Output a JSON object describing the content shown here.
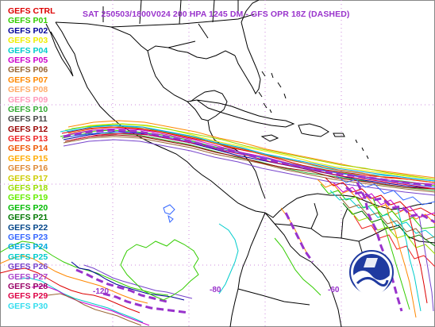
{
  "title": "SAT 250503/1800V024  200 HPA 1245 DM - GFS OPR 18Z (DASHED)",
  "legend": [
    {
      "label": "GEFS CTRL",
      "color": "#dd0000"
    },
    {
      "label": "GEFS P01",
      "color": "#33cc00"
    },
    {
      "label": "GEFS P02",
      "color": "#000099"
    },
    {
      "label": "GEFS P03",
      "color": "#eeee00"
    },
    {
      "label": "GEFS P04",
      "color": "#00cccc"
    },
    {
      "label": "GEFS P05",
      "color": "#cc00cc"
    },
    {
      "label": "GEFS P06",
      "color": "#996633"
    },
    {
      "label": "GEFS P07",
      "color": "#ff8800"
    },
    {
      "label": "GEFS P08",
      "color": "#ffaa66"
    },
    {
      "label": "GEFS P09",
      "color": "#ff99bb"
    },
    {
      "label": "GEFS P10",
      "color": "#33aa33"
    },
    {
      "label": "GEFS P11",
      "color": "#444444"
    },
    {
      "label": "GEFS P12",
      "color": "#990000"
    },
    {
      "label": "GEFS P13",
      "color": "#ee2222"
    },
    {
      "label": "GEFS P14",
      "color": "#ee5500"
    },
    {
      "label": "GEFS P15",
      "color": "#ffaa00"
    },
    {
      "label": "GEFS P16",
      "color": "#dd8833"
    },
    {
      "label": "GEFS P17",
      "color": "#cccc00"
    },
    {
      "label": "GEFS P18",
      "color": "#99dd00"
    },
    {
      "label": "GEFS P19",
      "color": "#66ee00"
    },
    {
      "label": "GEFS P20",
      "color": "#00bb00"
    },
    {
      "label": "GEFS P21",
      "color": "#007700"
    },
    {
      "label": "GEFS P22",
      "color": "#004488"
    },
    {
      "label": "GEFS P23",
      "color": "#3366ff"
    },
    {
      "label": "GEFS P24",
      "color": "#00aadd"
    },
    {
      "label": "GEFS P25",
      "color": "#00cccc"
    },
    {
      "label": "GEFS P26",
      "color": "#7744cc"
    },
    {
      "label": "GEFS P27",
      "color": "#aa44cc"
    },
    {
      "label": "GEFS P28",
      "color": "#990066"
    },
    {
      "label": "GEFS P29",
      "color": "#dd0044"
    },
    {
      "label": "GEFS P30",
      "color": "#33ddee"
    }
  ],
  "longitude_labels": [
    "-120",
    "-80",
    "-60"
  ],
  "logo_text": "NOAA",
  "colors": {
    "operational": "#9933cc",
    "coastline": "#000000",
    "graticule": "#cc88dd"
  }
}
